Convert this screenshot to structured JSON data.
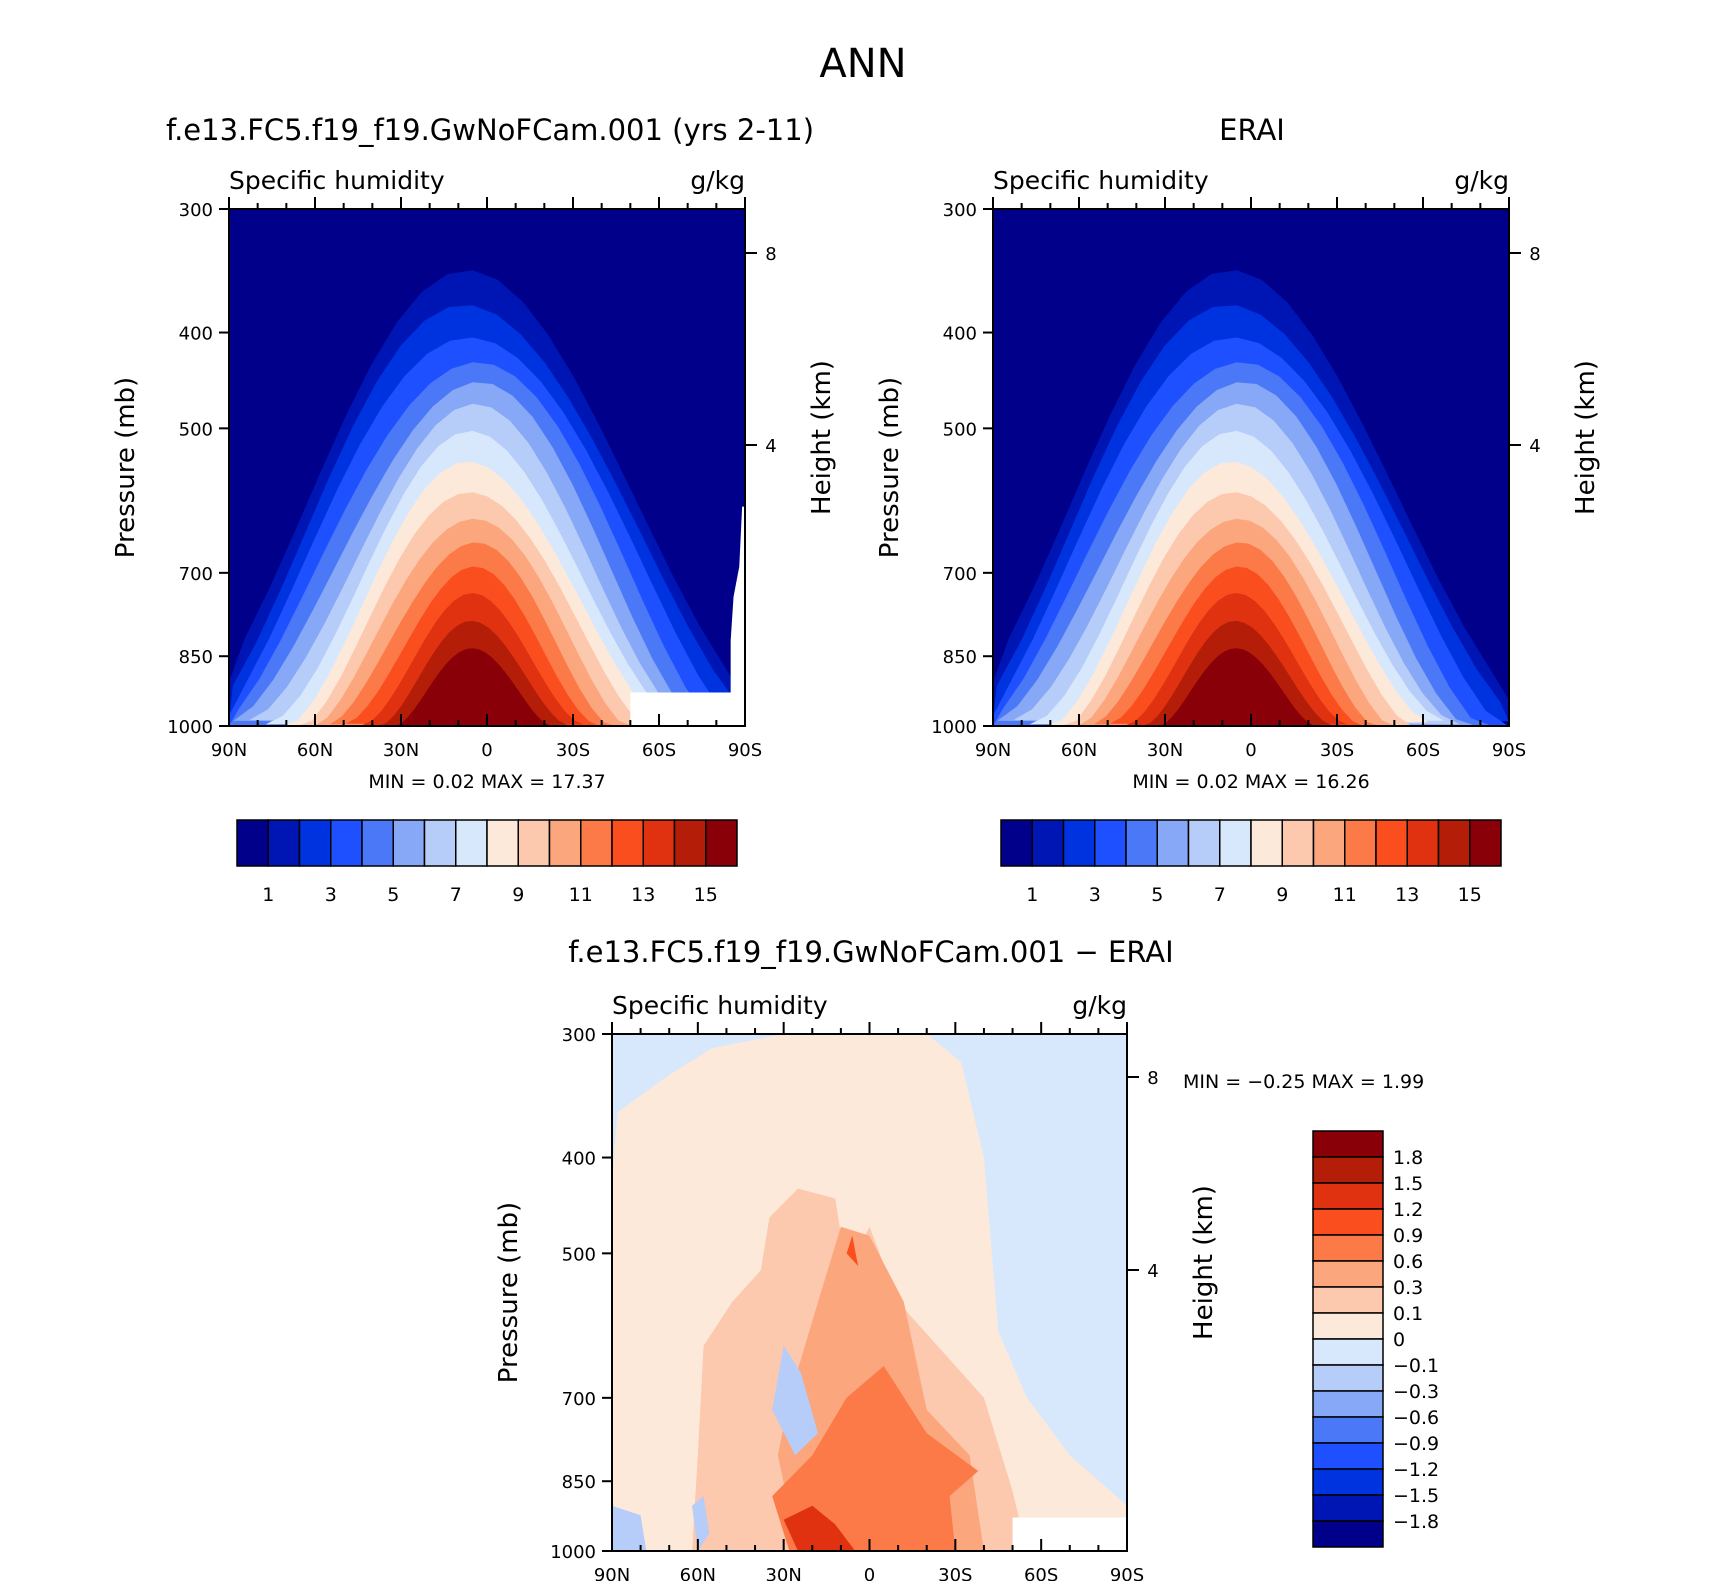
{
  "title": "ANN",
  "panels": [
    {
      "case_title": "f.e13.FC5.f19_f19.GwNoFCam.001 (yrs 2-11)",
      "variable": "Specific humidity",
      "units": "g/kg",
      "ylabel": "Pressure (mb)",
      "y2label": "Height (km)",
      "stats": "MIN =    0.02   MAX =   17.37"
    },
    {
      "case_title": "ERAI",
      "variable": "Specific humidity",
      "units": "g/kg",
      "ylabel": "Pressure (mb)",
      "y2label": "Height (km)",
      "stats": "MIN =    0.02   MAX =   16.26"
    },
    {
      "case_title": "f.e13.FC5.f19_f19.GwNoFCam.001 − ERAI",
      "variable": "Specific humidity",
      "units": "g/kg",
      "ylabel": "Pressure (mb)",
      "y2label": "Height (km)",
      "stats": "MIN =   −0.25   MAX =    1.99"
    }
  ],
  "chart_data": [
    {
      "type": "heatmap",
      "panel": "model",
      "x_ticks": [
        "90N",
        "60N",
        "30N",
        "0",
        "30S",
        "60S",
        "90S"
      ],
      "x_values": [
        90,
        60,
        30,
        0,
        -30,
        -60,
        -90
      ],
      "y_ticks": [
        300,
        400,
        500,
        700,
        850,
        1000
      ],
      "y2_ticks": [
        8,
        4
      ],
      "y_scale": "log",
      "ylim": [
        1000,
        300
      ],
      "xlim": [
        90,
        -90
      ],
      "colorbar_labels": [
        "1",
        "3",
        "5",
        "7",
        "9",
        "11",
        "13",
        "15"
      ],
      "colorbar_colors": [
        "#00008a",
        "#0016b4",
        "#0033e0",
        "#1e50ff",
        "#4a78f7",
        "#86a8f7",
        "#b6ccf9",
        "#d8e8fc",
        "#fde9da",
        "#fcc8ae",
        "#fba67d",
        "#fb7a48",
        "#fa4e1e",
        "#e03210",
        "#b41e08",
        "#8a0008"
      ],
      "contour_levels": [
        1,
        2,
        3,
        4,
        5,
        6,
        7,
        8,
        9,
        10,
        11,
        12,
        13,
        14,
        15
      ],
      "min": 0.02,
      "max": 17.37
    },
    {
      "type": "heatmap",
      "panel": "obs",
      "x_ticks": [
        "90N",
        "60N",
        "30N",
        "0",
        "30S",
        "60S",
        "90S"
      ],
      "x_values": [
        90,
        60,
        30,
        0,
        -30,
        -60,
        -90
      ],
      "y_ticks": [
        300,
        400,
        500,
        700,
        850,
        1000
      ],
      "y2_ticks": [
        8,
        4
      ],
      "y_scale": "log",
      "ylim": [
        1000,
        300
      ],
      "xlim": [
        90,
        -90
      ],
      "colorbar_labels": [
        "1",
        "3",
        "5",
        "7",
        "9",
        "11",
        "13",
        "15"
      ],
      "colorbar_colors": [
        "#00008a",
        "#0016b4",
        "#0033e0",
        "#1e50ff",
        "#4a78f7",
        "#86a8f7",
        "#b6ccf9",
        "#d8e8fc",
        "#fde9da",
        "#fcc8ae",
        "#fba67d",
        "#fb7a48",
        "#fa4e1e",
        "#e03210",
        "#b41e08",
        "#8a0008"
      ],
      "contour_levels": [
        1,
        2,
        3,
        4,
        5,
        6,
        7,
        8,
        9,
        10,
        11,
        12,
        13,
        14,
        15
      ],
      "min": 0.02,
      "max": 16.26
    },
    {
      "type": "heatmap",
      "panel": "difference",
      "x_ticks": [
        "90N",
        "60N",
        "30N",
        "0",
        "30S",
        "60S",
        "90S"
      ],
      "x_values": [
        90,
        60,
        30,
        0,
        -30,
        -60,
        -90
      ],
      "y_ticks": [
        300,
        400,
        500,
        700,
        850,
        1000
      ],
      "y2_ticks": [
        8,
        4
      ],
      "y_scale": "log",
      "ylim": [
        1000,
        300
      ],
      "xlim": [
        90,
        -90
      ],
      "colorbar_labels": [
        "1.8",
        "1.5",
        "1.2",
        "0.9",
        "0.6",
        "0.3",
        "0.1",
        "0",
        "−0.1",
        "−0.3",
        "−0.6",
        "−0.9",
        "−1.2",
        "−1.5",
        "−1.8"
      ],
      "colorbar_colors": [
        "#8a0008",
        "#b41e08",
        "#e03210",
        "#fa4e1e",
        "#fb7a48",
        "#fba67d",
        "#fcc8ae",
        "#fde9da",
        "#d8e8fc",
        "#b6ccf9",
        "#86a8f7",
        "#4a78f7",
        "#1e50ff",
        "#0033e0",
        "#0016b4",
        "#00008a"
      ],
      "contour_levels": [
        -1.8,
        -1.5,
        -1.2,
        -0.9,
        -0.6,
        -0.3,
        -0.1,
        0,
        0.1,
        0.3,
        0.6,
        0.9,
        1.2,
        1.5,
        1.8
      ],
      "min": -0.25,
      "max": 1.99
    }
  ]
}
